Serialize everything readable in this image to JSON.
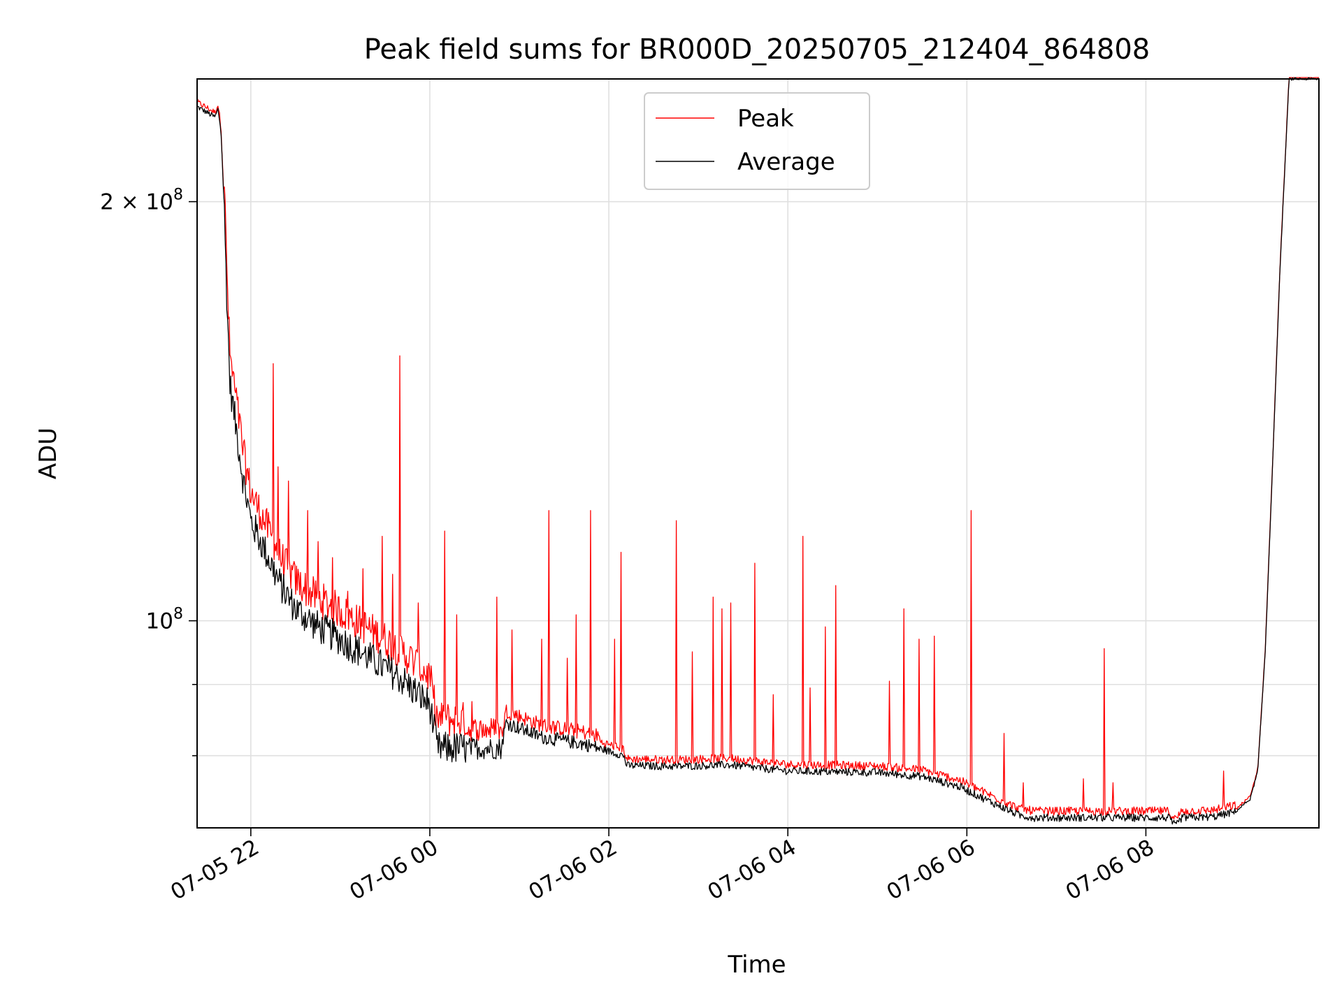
{
  "chart_data": {
    "type": "line",
    "title": "Peak field sums for BR000D_20250705_212404_864808",
    "xlabel": "Time",
    "ylabel": "ADU",
    "yscale": "log",
    "xlim": [
      "2025-07-05 21:24",
      "2025-07-06 09:56"
    ],
    "ylim": [
      71000000,
      245000000
    ],
    "grid": true,
    "legend_position": "top-center",
    "x_ticks": [
      {
        "t": "2025-07-05 22:00",
        "label": "07-05 22"
      },
      {
        "t": "2025-07-06 00:00",
        "label": "07-06 00"
      },
      {
        "t": "2025-07-06 02:00",
        "label": "07-06 02"
      },
      {
        "t": "2025-07-06 04:00",
        "label": "07-06 04"
      },
      {
        "t": "2025-07-06 06:00",
        "label": "07-06 06"
      },
      {
        "t": "2025-07-06 08:00",
        "label": "07-06 08"
      }
    ],
    "y_ticks": [
      {
        "value": 200000000,
        "label": "2 × 10",
        "exp": "8"
      },
      {
        "value": 100000000,
        "label": "10",
        "exp": "8"
      }
    ],
    "y_minor_ticks": [
      80000000,
      90000000
    ],
    "series": [
      {
        "name": "Average",
        "color": "#000000",
        "points": [
          [
            "2025-07-05 21:24",
            234000000
          ],
          [
            "2025-07-05 21:30",
            232000000
          ],
          [
            "2025-07-05 21:36",
            230000000
          ],
          [
            "2025-07-05 21:38",
            233000000
          ],
          [
            "2025-07-05 21:40",
            225000000
          ],
          [
            "2025-07-05 21:42",
            200000000
          ],
          [
            "2025-07-05 21:44",
            170000000
          ],
          [
            "2025-07-05 21:46",
            148000000
          ],
          [
            "2025-07-05 21:50",
            138000000
          ],
          [
            "2025-07-05 21:55",
            126000000
          ],
          [
            "2025-07-05 22:00",
            118000000
          ],
          [
            "2025-07-05 22:10",
            112000000
          ],
          [
            "2025-07-05 22:20",
            106000000
          ],
          [
            "2025-07-05 22:30",
            102000000
          ],
          [
            "2025-07-05 22:45",
            99000000
          ],
          [
            "2025-07-05 23:00",
            97000000
          ],
          [
            "2025-07-05 23:20",
            94000000
          ],
          [
            "2025-07-05 23:40",
            91000000
          ],
          [
            "2025-07-06 00:00",
            87000000
          ],
          [
            "2025-07-06 00:05",
            81000000
          ],
          [
            "2025-07-06 00:30",
            81000000
          ],
          [
            "2025-07-06 00:48",
            81000000
          ],
          [
            "2025-07-06 00:51",
            84500000
          ],
          [
            "2025-07-06 01:15",
            82500000
          ],
          [
            "2025-07-06 01:45",
            81500000
          ],
          [
            "2025-07-06 02:10",
            80000000
          ],
          [
            "2025-07-06 02:12",
            78700000
          ],
          [
            "2025-07-06 02:45",
            78600000
          ],
          [
            "2025-07-06 03:20",
            78800000
          ],
          [
            "2025-07-06 04:00",
            78000000
          ],
          [
            "2025-07-06 04:30",
            77900000
          ],
          [
            "2025-07-06 05:00",
            77800000
          ],
          [
            "2025-07-06 05:30",
            77300000
          ],
          [
            "2025-07-06 05:55",
            76000000
          ],
          [
            "2025-07-06 06:15",
            74200000
          ],
          [
            "2025-07-06 06:35",
            72500000
          ],
          [
            "2025-07-06 06:45",
            72200000
          ],
          [
            "2025-07-06 07:30",
            72200000
          ],
          [
            "2025-07-06 08:00",
            72200000
          ],
          [
            "2025-07-06 08:15",
            72200000
          ],
          [
            "2025-07-06 08:20",
            71200000
          ],
          [
            "2025-07-06 08:24",
            72200000
          ],
          [
            "2025-07-06 08:45",
            72300000
          ],
          [
            "2025-07-06 09:00",
            72900000
          ],
          [
            "2025-07-06 09:10",
            74500000
          ],
          [
            "2025-07-06 09:15",
            78000000
          ],
          [
            "2025-07-06 09:20",
            95000000
          ],
          [
            "2025-07-06 09:25",
            130000000
          ],
          [
            "2025-07-06 09:30",
            180000000
          ],
          [
            "2025-07-06 09:36",
            245000000
          ],
          [
            "2025-07-06 09:56",
            245000000
          ]
        ]
      },
      {
        "name": "Peak",
        "color": "#ff0000",
        "spikes": [
          [
            "2025-07-05 22:15",
            153000000
          ],
          [
            "2025-07-05 22:18",
            129000000
          ],
          [
            "2025-07-05 22:25",
            126000000
          ],
          [
            "2025-07-05 22:38",
            120000000
          ],
          [
            "2025-07-05 22:45",
            114000000
          ],
          [
            "2025-07-05 22:55",
            111000000
          ],
          [
            "2025-07-05 23:05",
            105000000
          ],
          [
            "2025-07-05 23:15",
            109000000
          ],
          [
            "2025-07-05 23:28",
            115000000
          ],
          [
            "2025-07-05 23:35",
            108000000
          ],
          [
            "2025-07-05 23:40",
            155000000
          ],
          [
            "2025-07-05 23:52",
            103000000
          ],
          [
            "2025-07-06 00:10",
            116000000
          ],
          [
            "2025-07-06 00:18",
            101000000
          ],
          [
            "2025-07-06 00:28",
            87500000
          ],
          [
            "2025-07-06 00:45",
            104000000
          ],
          [
            "2025-07-06 00:55",
            98500000
          ],
          [
            "2025-07-06 01:15",
            97000000
          ],
          [
            "2025-07-06 01:20",
            120000000
          ],
          [
            "2025-07-06 01:32",
            94000000
          ],
          [
            "2025-07-06 01:38",
            101000000
          ],
          [
            "2025-07-06 01:48",
            120000000
          ],
          [
            "2025-07-06 02:04",
            97000000
          ],
          [
            "2025-07-06 02:08",
            112000000
          ],
          [
            "2025-07-06 02:45",
            118000000
          ],
          [
            "2025-07-06 02:56",
            95000000
          ],
          [
            "2025-07-06 03:10",
            104000000
          ],
          [
            "2025-07-06 03:16",
            102000000
          ],
          [
            "2025-07-06 03:22",
            103000000
          ],
          [
            "2025-07-06 03:38",
            110000000
          ],
          [
            "2025-07-06 03:50",
            88500000
          ],
          [
            "2025-07-06 04:10",
            115000000
          ],
          [
            "2025-07-06 04:15",
            89500000
          ],
          [
            "2025-07-06 04:25",
            99000000
          ],
          [
            "2025-07-06 04:32",
            106000000
          ],
          [
            "2025-07-06 05:08",
            90500000
          ],
          [
            "2025-07-06 05:18",
            102000000
          ],
          [
            "2025-07-06 05:28",
            97000000
          ],
          [
            "2025-07-06 05:38",
            97500000
          ],
          [
            "2025-07-06 06:03",
            120000000
          ],
          [
            "2025-07-06 06:25",
            83000000
          ],
          [
            "2025-07-06 06:38",
            76500000
          ],
          [
            "2025-07-06 07:18",
            77000000
          ],
          [
            "2025-07-06 07:32",
            95500000
          ],
          [
            "2025-07-06 07:38",
            76500000
          ],
          [
            "2025-07-06 08:52",
            78000000
          ]
        ]
      }
    ]
  }
}
